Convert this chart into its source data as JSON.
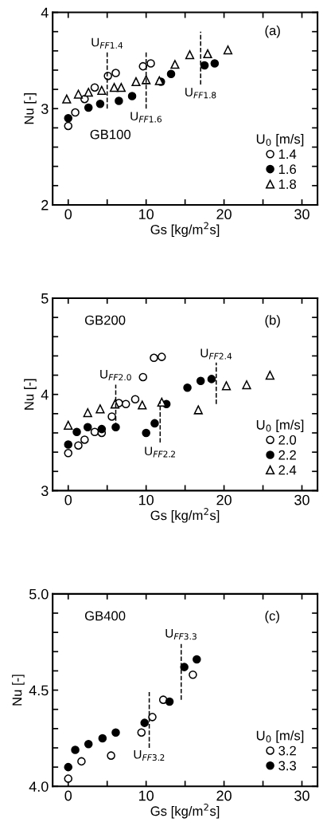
{
  "chart_data": [
    {
      "type": "scatter",
      "xlabel": "Gs [kg/m$^{2}$s]",
      "ylabel": "Nu [-]",
      "legend_title": "U$_{0}$ [m/s]",
      "legend": "lower right",
      "xlim": [
        -2,
        32
      ],
      "xticks": [
        0,
        {
          "value": 5,
          "label": null
        },
        10,
        {
          "value": 15,
          "label": null
        },
        20,
        {
          "value": 25,
          "label": null
        },
        30
      ],
      "ylim": [
        2,
        4
      ],
      "yticks": [
        2,
        {
          "value": 2.2,
          "label": null
        },
        {
          "value": 2.4,
          "label": null
        },
        {
          "value": 2.6,
          "label": null
        },
        {
          "value": 2.8,
          "label": null
        },
        3,
        {
          "value": 3.2,
          "label": null
        },
        {
          "value": 3.4,
          "label": null
        },
        {
          "value": 3.6,
          "label": null
        },
        {
          "value": 3.8,
          "label": null
        },
        4
      ],
      "annotations": [
        "(a)",
        "GB100",
        {
          "text": "U$_{FF1.4}$",
          "x": 5,
          "y": 3.62
        },
        {
          "text": "U$_{FF1.6}$",
          "x": 10,
          "y": 2.97
        },
        {
          "text": "U$_{FF1.8}$",
          "x": 17,
          "y": 3.22
        }
      ],
      "series": [
        {
          "name": "1.4",
          "marker": "circle",
          "color": "#ffffff",
          "x": [
            0,
            0.9,
            2.1,
            3.4,
            5.1,
            6.1,
            9.6,
            10.6
          ],
          "values": [
            2.82,
            2.96,
            3.1,
            3.22,
            3.34,
            3.37,
            3.44,
            3.47
          ]
        },
        {
          "name": "1.6",
          "marker": "circle",
          "color": "#000000",
          "x": [
            0,
            2.6,
            4.1,
            6.5,
            8.2,
            11.9,
            13.2,
            17.5,
            18.8
          ],
          "values": [
            2.9,
            3.01,
            3.05,
            3.08,
            3.13,
            3.28,
            3.36,
            3.45,
            3.47
          ]
        },
        {
          "name": "1.8",
          "marker": "triangle",
          "color": "#ffffff",
          "x": [
            -0.2,
            1.3,
            2.6,
            4.3,
            5.9,
            6.8,
            8.7,
            10,
            11.7,
            13.7,
            15.6,
            17.9,
            20.5
          ],
          "values": [
            3.1,
            3.15,
            3.17,
            3.19,
            3.22,
            3.22,
            3.28,
            3.3,
            3.29,
            3.46,
            3.56,
            3.57,
            3.61
          ]
        },
        {
          "type": "line",
          "line_style": "dashed",
          "color": "#000000",
          "x": [
            5,
            5
          ],
          "values": [
            3.0,
            3.59
          ]
        },
        {
          "type": "line",
          "line_style": "dashed",
          "color": "#000000",
          "x": [
            10,
            10
          ],
          "values": [
            3.0,
            3.59
          ]
        },
        {
          "type": "line",
          "line_style": "dashed",
          "color": "#000000",
          "x": [
            17,
            17
          ],
          "values": [
            3.25,
            3.8
          ]
        }
      ]
    },
    {
      "type": "scatter",
      "xlabel": "Gs [kg/m$^{2}$s]",
      "ylabel": "Nu [-]",
      "legend_title": "U$_{0}$ [m/s]",
      "legend": "lower right",
      "xlim": [
        -2,
        32
      ],
      "xticks": [
        0,
        {
          "value": 5,
          "label": null
        },
        10,
        {
          "value": 15,
          "label": null
        },
        20,
        {
          "value": 25,
          "label": null
        },
        30
      ],
      "ylim": [
        3,
        5
      ],
      "yticks": [
        3,
        {
          "value": 3.2,
          "label": null
        },
        {
          "value": 3.4,
          "label": null
        },
        {
          "value": 3.6,
          "label": null
        },
        {
          "value": 3.8,
          "label": null
        },
        4,
        {
          "value": 4.2,
          "label": null
        },
        {
          "value": 4.4,
          "label": null
        },
        {
          "value": 4.6,
          "label": null
        },
        {
          "value": 4.8,
          "label": null
        },
        5
      ],
      "annotations": [
        "(b)",
        "GB200",
        {
          "text": "U$_{FF2.0}$",
          "x": 6.1,
          "y": 4.14
        },
        {
          "text": "U$_{FF2.2}$",
          "x": 11.8,
          "y": 3.46
        },
        {
          "text": "U$_{FF2.4}$",
          "x": 19,
          "y": 4.36
        }
      ],
      "series": [
        {
          "name": "2.0",
          "marker": "circle",
          "color": "#ffffff",
          "x": [
            0,
            1.3,
            2.1,
            3.4,
            4.3,
            5.6,
            6.5,
            7.4,
            8.6,
            9.6,
            11.0,
            12.0
          ],
          "values": [
            3.39,
            3.47,
            3.53,
            3.61,
            3.6,
            3.77,
            3.91,
            3.9,
            3.95,
            4.18,
            4.38,
            4.39
          ]
        },
        {
          "name": "2.2",
          "marker": "circle",
          "color": "#000000",
          "x": [
            0,
            1.1,
            2.5,
            4.3,
            6.1,
            10.0,
            11.1,
            12.6,
            15.3,
            17.0,
            18.4
          ],
          "values": [
            3.48,
            3.61,
            3.66,
            3.64,
            3.66,
            3.6,
            3.7,
            3.9,
            4.07,
            4.14,
            4.16
          ]
        },
        {
          "name": "2.4",
          "marker": "triangle",
          "color": "#ffffff",
          "x": [
            0,
            2.5,
            4.1,
            6.0,
            9.5,
            12.0,
            16.7,
            20.3,
            22.9,
            25.9
          ],
          "values": [
            3.68,
            3.81,
            3.85,
            3.9,
            3.89,
            3.92,
            3.84,
            4.09,
            4.1,
            4.2
          ]
        },
        {
          "type": "line",
          "line_style": "dashed",
          "color": "#000000",
          "x": [
            6.1,
            6.1
          ],
          "values": [
            3.66,
            4.1
          ]
        },
        {
          "type": "line",
          "line_style": "dashed",
          "color": "#000000",
          "x": [
            11.8,
            11.8
          ],
          "values": [
            3.5,
            3.93
          ]
        },
        {
          "type": "line",
          "line_style": "dashed",
          "color": "#000000",
          "x": [
            19,
            19
          ],
          "values": [
            3.9,
            4.33
          ]
        }
      ]
    },
    {
      "type": "scatter",
      "xlabel": "Gs [kg/m$^{2}$s]",
      "ylabel": "Nu [-]",
      "legend_title": "U$_{0}$ [m/s]",
      "legend": "lower right",
      "xlim": [
        -2,
        32
      ],
      "xticks": [
        0,
        {
          "value": 5,
          "label": null
        },
        10,
        {
          "value": 15,
          "label": null
        },
        20,
        {
          "value": 25,
          "label": null
        },
        30
      ],
      "ylim": [
        4,
        5
      ],
      "yticks": [
        {
          "value": 4,
          "label": "4.0"
        },
        {
          "value": 4.1,
          "label": null
        },
        {
          "value": 4.2,
          "label": null
        },
        {
          "value": 4.3,
          "label": null
        },
        {
          "value": 4.4,
          "label": null
        },
        4.5,
        {
          "value": 4.6,
          "label": null
        },
        {
          "value": 4.7,
          "label": null
        },
        {
          "value": 4.8,
          "label": null
        },
        {
          "value": 4.9,
          "label": null
        },
        {
          "value": 5,
          "label": "5.0"
        }
      ],
      "annotations": [
        "(c)",
        "GB400",
        {
          "text": "U$_{FF3.2}$",
          "x": 10.4,
          "y": 4.19
        },
        {
          "text": "U$_{FF3.3}$",
          "x": 14.5,
          "y": 4.76
        }
      ],
      "series": [
        {
          "name": "3.2",
          "marker": "circle",
          "color": "#ffffff",
          "x": [
            0,
            1.7,
            5.5,
            9.4,
            10.8,
            12.2,
            16.0
          ],
          "values": [
            4.04,
            4.13,
            4.16,
            4.28,
            4.36,
            4.45,
            4.58
          ]
        },
        {
          "name": "3.3",
          "marker": "circle",
          "color": "#000000",
          "x": [
            0,
            0.9,
            2.6,
            4.4,
            6.1,
            9.8,
            13.0,
            14.9,
            16.5
          ],
          "values": [
            4.1,
            4.19,
            4.22,
            4.25,
            4.28,
            4.33,
            4.44,
            4.62,
            4.66
          ]
        },
        {
          "type": "line",
          "line_style": "dashed",
          "color": "#000000",
          "x": [
            10.4,
            10.4
          ],
          "values": [
            4.2,
            4.49
          ]
        },
        {
          "type": "line",
          "line_style": "dashed",
          "color": "#000000",
          "x": [
            14.5,
            14.5
          ],
          "values": [
            4.45,
            4.74
          ]
        }
      ]
    }
  ]
}
